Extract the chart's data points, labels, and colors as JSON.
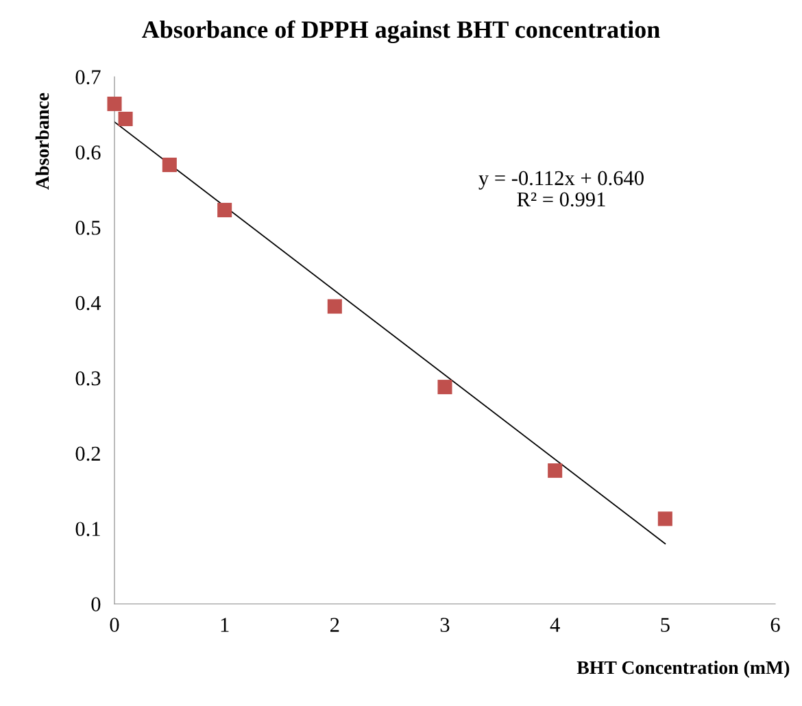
{
  "chart_data": {
    "type": "scatter",
    "title": "Absorbance of DPPH against BHT concentration",
    "xlabel": "BHT Concentration (mM)",
    "ylabel": "Absorbance",
    "x": [
      0,
      0.1,
      0.5,
      1,
      2,
      3,
      4,
      5
    ],
    "series": [
      {
        "color": "#c0504d",
        "marker": "square",
        "values": [
          0.664,
          0.644,
          0.583,
          0.523,
          0.395,
          0.288,
          0.177,
          0.113
        ]
      },
      {
        "type": "line",
        "color": "#000000",
        "marker": "none",
        "line_style": "solid",
        "x": [
          0,
          5
        ],
        "values": [
          0.64,
          0.08
        ]
      }
    ],
    "annotations": [
      "y = -0.112x + 0.640",
      "R² = 0.991"
    ],
    "xlim": [
      0,
      6
    ],
    "xticks": [
      0,
      1,
      2,
      3,
      4,
      5,
      6
    ],
    "ylim": [
      0,
      0.7
    ],
    "yticks": [
      0,
      0.1,
      0.2,
      0.3,
      0.4,
      0.5,
      0.6,
      0.7
    ],
    "grid": false,
    "legend": false
  }
}
